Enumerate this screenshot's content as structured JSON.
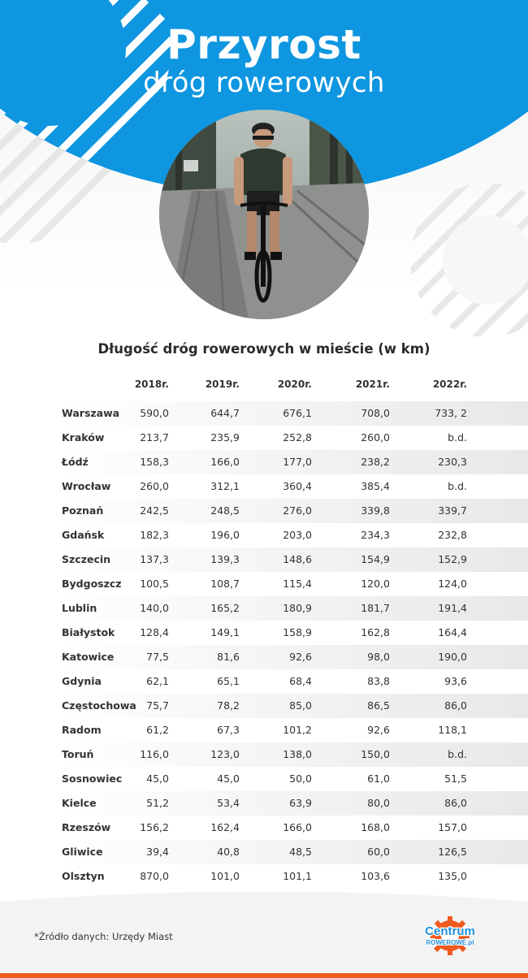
{
  "header": {
    "title": "Przyrost",
    "subtitle": "dróg rowerowych"
  },
  "colors": {
    "brand_blue": "#0e96e0",
    "accent_orange": "#f05a1e",
    "logo_blue": "#1f8fd8"
  },
  "table": {
    "title": "Długość dróg rowerowych w mieście (w km)",
    "columns": [
      "2018r.",
      "2019r.",
      "2020r.",
      "2021r.",
      "2022r."
    ],
    "rows": [
      {
        "city": "Warszawa",
        "values": [
          "590,0",
          "644,7",
          "676,1",
          "708,0",
          "733, 2"
        ]
      },
      {
        "city": "Kraków",
        "values": [
          "213,7",
          "235,9",
          "252,8",
          "260,0",
          "b.d."
        ]
      },
      {
        "city": "Łódź",
        "values": [
          "158,3",
          "166,0",
          "177,0",
          "238,2",
          "230,3"
        ]
      },
      {
        "city": "Wrocław",
        "values": [
          "260,0",
          "312,1",
          "360,4",
          "385,4",
          "b.d."
        ]
      },
      {
        "city": "Poznań",
        "values": [
          "242,5",
          "248,5",
          "276,0",
          "339,8",
          "339,7"
        ]
      },
      {
        "city": "Gdańsk",
        "values": [
          "182,3",
          "196,0",
          "203,0",
          "234,3",
          "232,8"
        ]
      },
      {
        "city": "Szczecin",
        "values": [
          "137,3",
          "139,3",
          "148,6",
          "154,9",
          "152,9"
        ]
      },
      {
        "city": "Bydgoszcz",
        "values": [
          "100,5",
          "108,7",
          "115,4",
          "120,0",
          "124,0"
        ]
      },
      {
        "city": "Lublin",
        "values": [
          "140,0",
          "165,2",
          "180,9",
          "181,7",
          "191,4"
        ]
      },
      {
        "city": "Białystok",
        "values": [
          "128,4",
          "149,1",
          "158,9",
          "162,8",
          "164,4"
        ]
      },
      {
        "city": "Katowice",
        "values": [
          "77,5",
          "81,6",
          "92,6",
          "98,0",
          "190,0"
        ]
      },
      {
        "city": "Gdynia",
        "values": [
          "62,1",
          "65,1",
          "68,4",
          "83,8",
          "93,6"
        ]
      },
      {
        "city": "Częstochowa",
        "values": [
          "75,7",
          "78,2",
          "85,0",
          "86,5",
          "86,0"
        ]
      },
      {
        "city": "Radom",
        "values": [
          "61,2",
          "67,3",
          "101,2",
          "92,6",
          "118,1"
        ]
      },
      {
        "city": "Toruń",
        "values": [
          "116,0",
          "123,0",
          "138,0",
          "150,0",
          "b.d."
        ]
      },
      {
        "city": "Sosnowiec",
        "values": [
          "45,0",
          "45,0",
          "50,0",
          "61,0",
          "51,5"
        ]
      },
      {
        "city": "Kielce",
        "values": [
          "51,2",
          "53,4",
          "63,9",
          "80,0",
          "86,0"
        ]
      },
      {
        "city": "Rzeszów",
        "values": [
          "156,2",
          "162,4",
          "166,0",
          "168,0",
          "157,0"
        ]
      },
      {
        "city": "Gliwice",
        "values": [
          "39,4",
          "40,8",
          "48,5",
          "60,0",
          "126,5"
        ]
      },
      {
        "city": "Olsztyn",
        "values": [
          "870,0",
          "101,0",
          "101,1",
          "103,6",
          "135,0"
        ]
      }
    ]
  },
  "footer": {
    "source_note": "*Źródło danych: Urzędy Miast",
    "logo_top": "Centrum",
    "logo_bottom": "ROWEROWE.pl"
  }
}
